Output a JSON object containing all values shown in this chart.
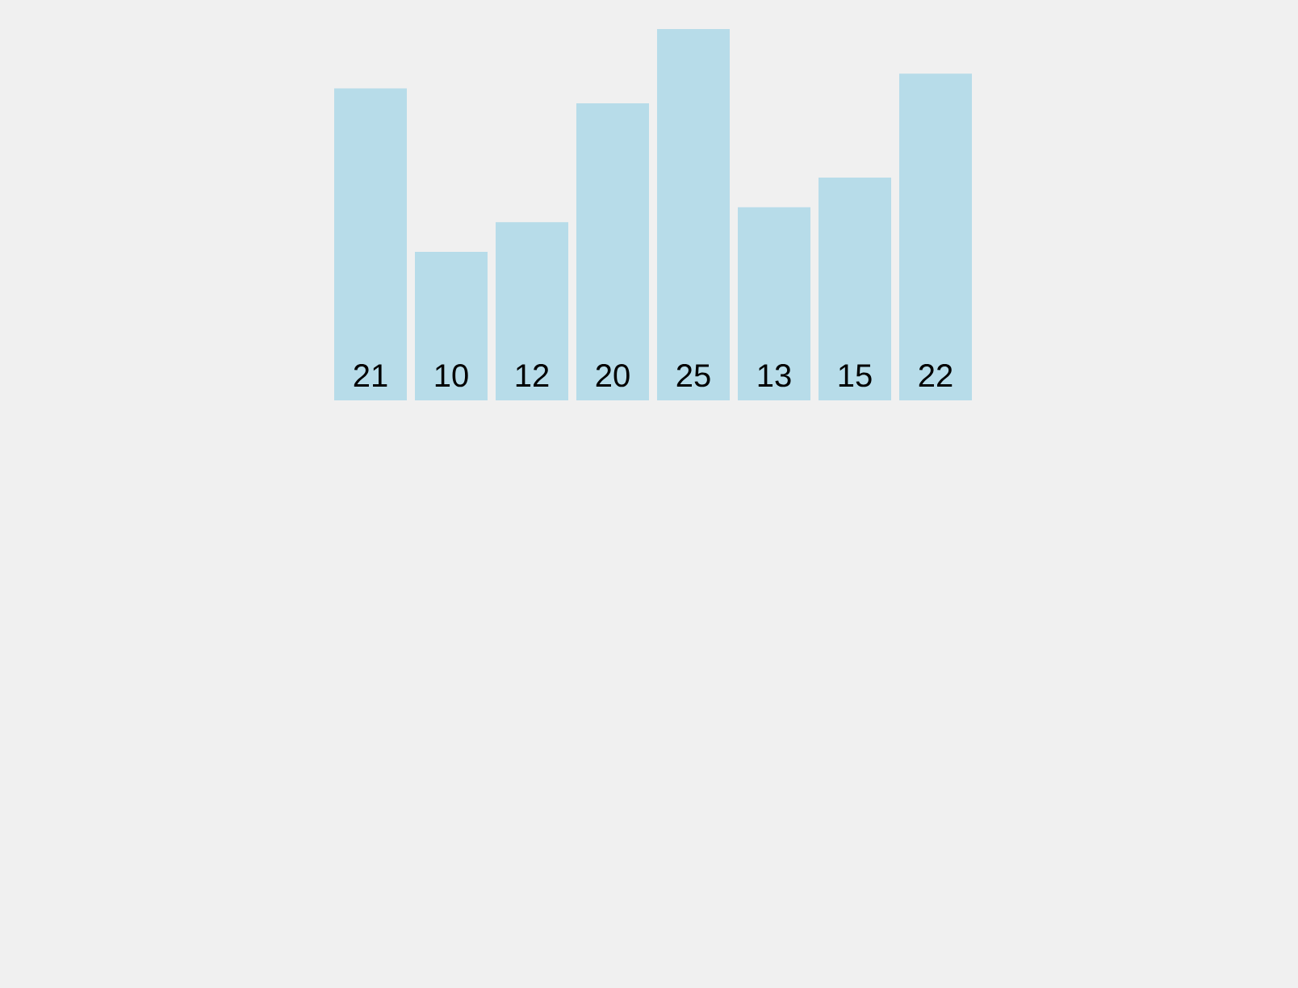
{
  "chart_data": {
    "type": "bar",
    "categories": [
      null,
      null,
      null,
      null,
      null,
      null,
      null,
      null
    ],
    "values": [
      21,
      10,
      12,
      20,
      25,
      13,
      15,
      22
    ],
    "color": "#b7dce9",
    "data_labels": true
  }
}
